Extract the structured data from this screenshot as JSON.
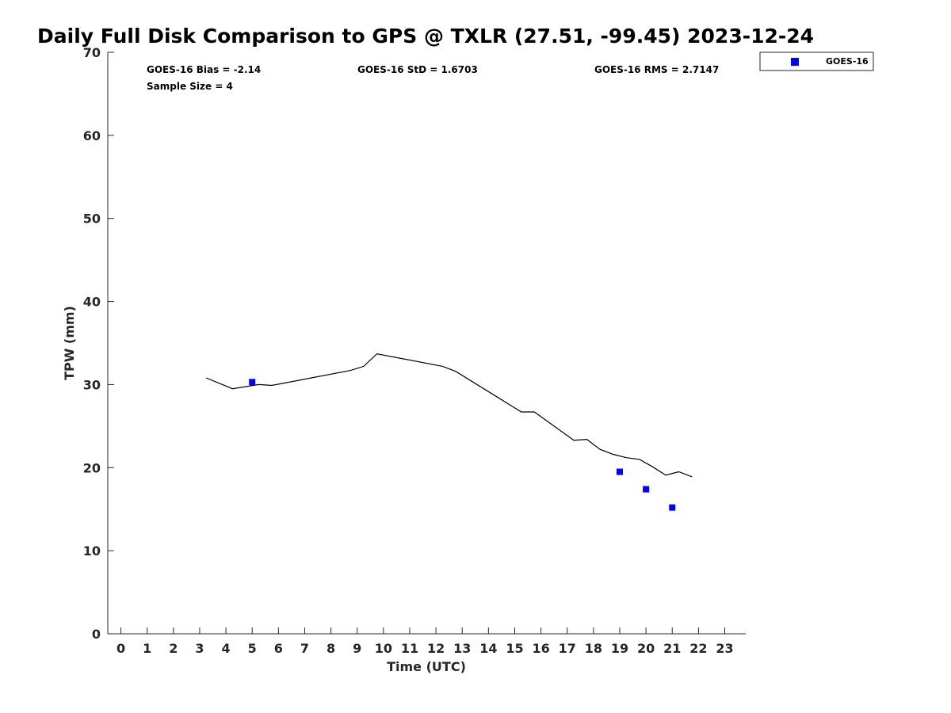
{
  "chart_data": {
    "type": "scatter",
    "title": "Daily Full Disk Comparison to GPS @ TXLR (27.51, -99.45) 2023-12-24",
    "xlabel": "Time (UTC)",
    "ylabel": "TPW (mm)",
    "xlim": [
      -0.5,
      23.8
    ],
    "ylim": [
      0,
      70
    ],
    "x_ticks": [
      0,
      1,
      2,
      3,
      4,
      5,
      6,
      7,
      8,
      9,
      10,
      11,
      12,
      13,
      14,
      15,
      16,
      17,
      18,
      19,
      20,
      21,
      22,
      23
    ],
    "y_ticks": [
      0,
      10,
      20,
      30,
      40,
      50,
      60,
      70
    ],
    "grid": false,
    "legend_position": "top-right",
    "stats": {
      "bias": "GOES-16 Bias = -2.14",
      "std": "GOES-16 StD = 1.6703",
      "rms": "GOES-16 RMS = 2.7147",
      "sample_size": "Sample Size = 4"
    },
    "series": [
      {
        "name": "GOES-16",
        "kind": "scatter",
        "marker": "square",
        "color": "#0000ff",
        "points": [
          {
            "x": 5.0,
            "y": 30.3
          },
          {
            "x": 19.0,
            "y": 19.5
          },
          {
            "x": 20.0,
            "y": 17.4
          },
          {
            "x": 21.0,
            "y": 15.2
          }
        ]
      },
      {
        "kind": "line",
        "color": "#000000",
        "points": [
          {
            "x": 3.25,
            "y": 30.8
          },
          {
            "x": 4.25,
            "y": 29.5
          },
          {
            "x": 5.25,
            "y": 30.0
          },
          {
            "x": 5.75,
            "y": 29.9
          },
          {
            "x": 8.75,
            "y": 31.7
          },
          {
            "x": 9.25,
            "y": 32.2
          },
          {
            "x": 9.75,
            "y": 33.7
          },
          {
            "x": 12.25,
            "y": 32.2
          },
          {
            "x": 12.75,
            "y": 31.6
          },
          {
            "x": 15.25,
            "y": 26.7
          },
          {
            "x": 15.75,
            "y": 26.7
          },
          {
            "x": 17.25,
            "y": 23.3
          },
          {
            "x": 17.75,
            "y": 23.4
          },
          {
            "x": 18.25,
            "y": 22.2
          },
          {
            "x": 18.75,
            "y": 21.6
          },
          {
            "x": 19.25,
            "y": 21.2
          },
          {
            "x": 19.75,
            "y": 21.0
          },
          {
            "x": 20.25,
            "y": 20.1
          },
          {
            "x": 20.75,
            "y": 19.1
          },
          {
            "x": 21.25,
            "y": 19.5
          },
          {
            "x": 21.75,
            "y": 18.9
          }
        ]
      }
    ]
  }
}
